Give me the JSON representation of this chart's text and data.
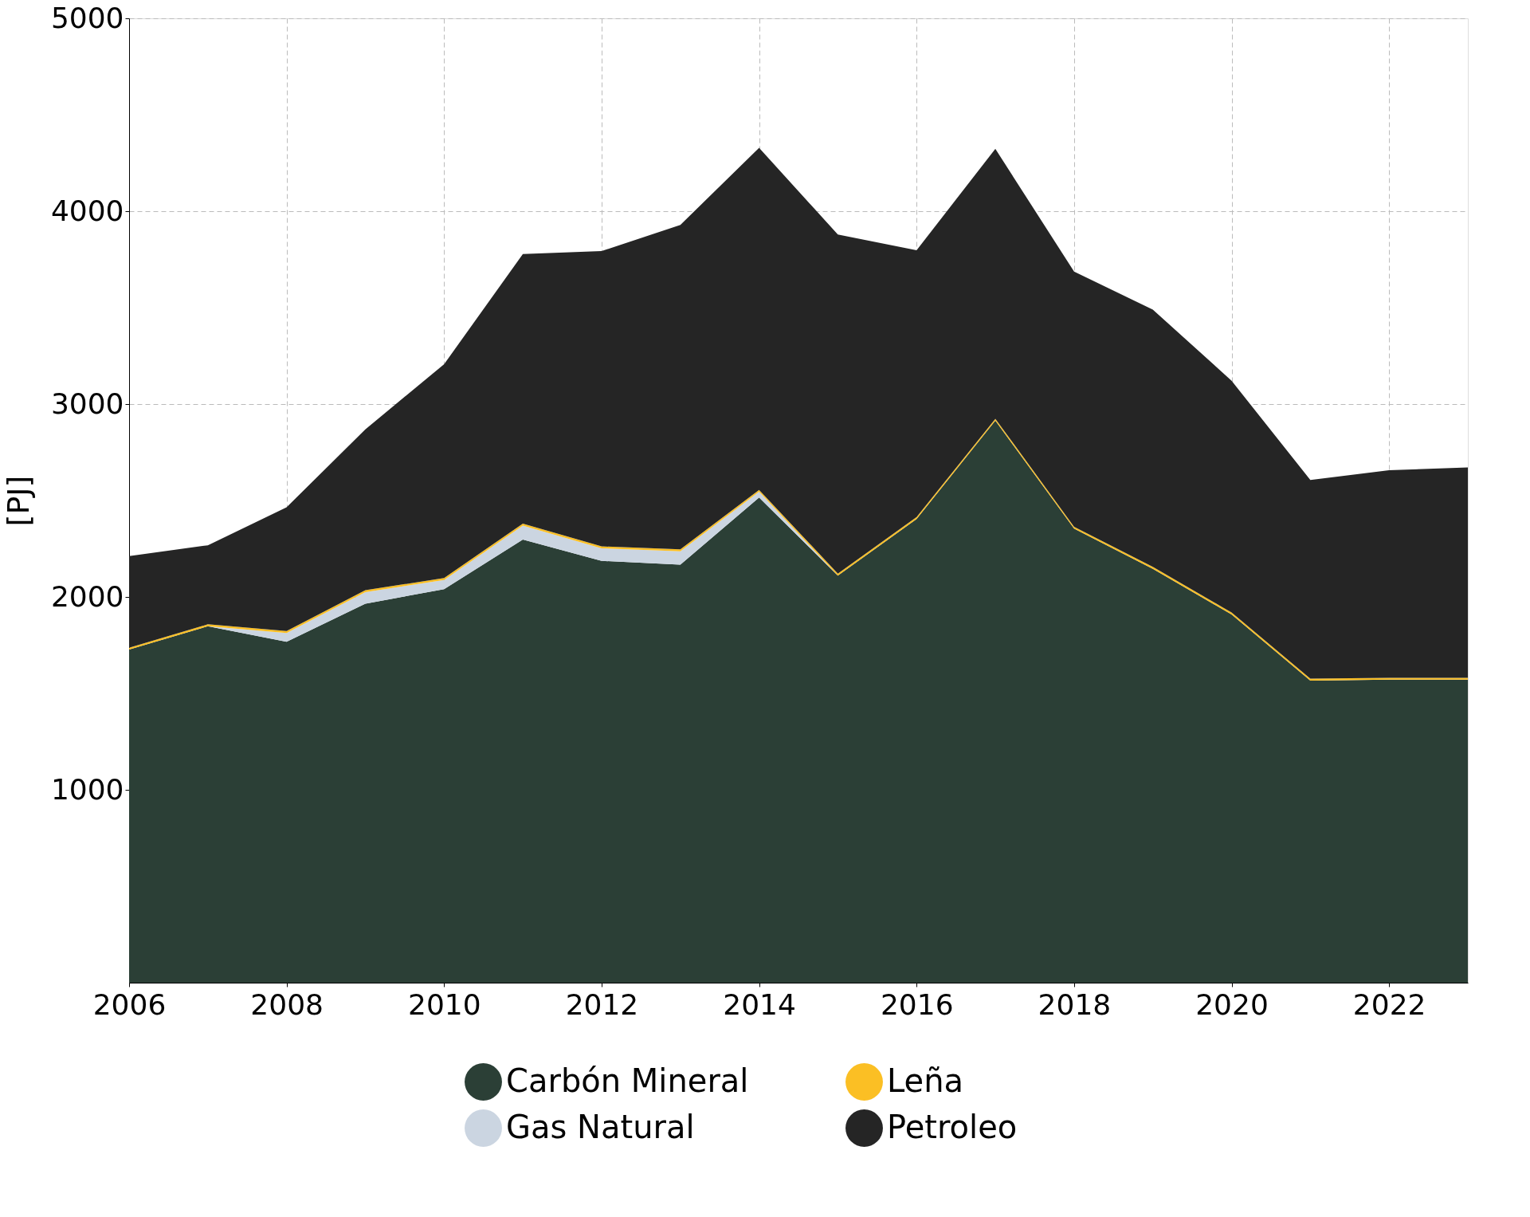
{
  "chart_data": {
    "type": "area",
    "stacked": true,
    "ylabel": "[PJ]",
    "x": [
      2006,
      2007,
      2008,
      2009,
      2010,
      2011,
      2012,
      2013,
      2014,
      2015,
      2016,
      2017,
      2018,
      2019,
      2020,
      2021,
      2022,
      2023
    ],
    "series": [
      {
        "name": "Carbón Mineral",
        "color": "#2b3f36",
        "values": [
          1727,
          1848,
          1768,
          1965,
          2040,
          2298,
          2187,
          2167,
          2515,
          2111,
          2404,
          2914,
          2354,
          2146,
          1909,
          1566,
          1571,
          1571
        ]
      },
      {
        "name": "Gas Natural",
        "color": "#cbd5e1",
        "values": [
          0,
          0,
          45,
          60,
          48,
          72,
          65,
          70,
          30,
          0,
          0,
          0,
          0,
          0,
          0,
          0,
          0,
          0
        ]
      },
      {
        "name": "Leña",
        "color": "#fbbf24",
        "values": [
          10,
          10,
          10,
          10,
          10,
          10,
          10,
          10,
          10,
          10,
          10,
          10,
          10,
          10,
          10,
          10,
          10,
          10
        ]
      },
      {
        "name": "Petroleo",
        "color": "#252525",
        "values": [
          475,
          410,
          642,
          834,
          1109,
          1398,
          1531,
          1682,
          1773,
          1758,
          1384,
          1399,
          1323,
          1334,
          1202,
          1030,
          1076,
          1091
        ]
      }
    ],
    "xlim": [
      2006,
      2023
    ],
    "xticks": [
      2006,
      2008,
      2010,
      2012,
      2014,
      2016,
      2018,
      2020,
      2022
    ],
    "ylim": [
      0,
      5000
    ],
    "yticks": [
      1000,
      2000,
      3000,
      4000,
      5000
    ],
    "grid": true,
    "legend": "bottom"
  }
}
